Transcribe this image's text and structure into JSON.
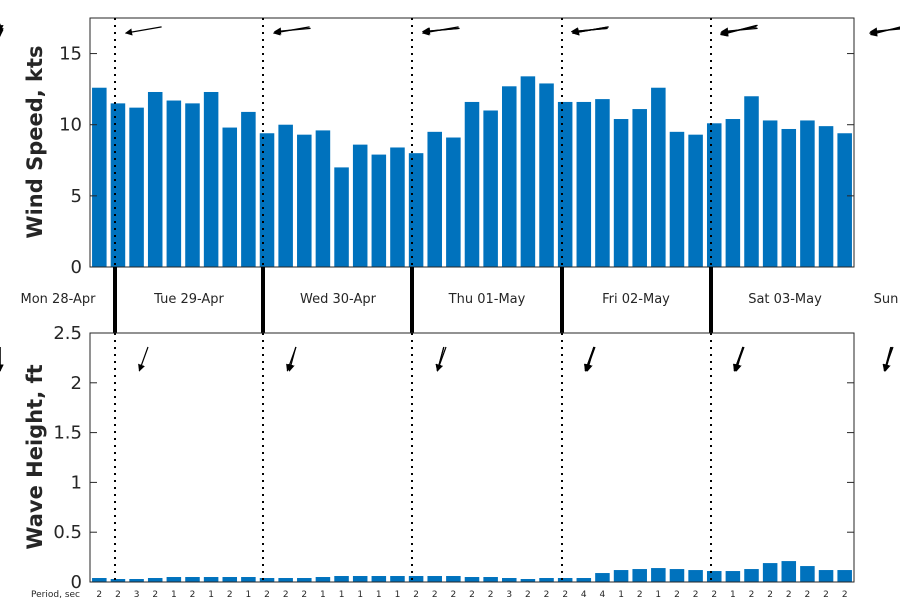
{
  "chart_data": [
    {
      "type": "bar",
      "ylabel": "Wind Speed, kts",
      "ylim": [
        0,
        17.5
      ],
      "yticks": [
        0,
        5,
        10,
        15
      ],
      "values": [
        12.6,
        11.5,
        11.2,
        12.3,
        11.7,
        11.5,
        12.3,
        9.8,
        10.9,
        9.4,
        10.0,
        9.3,
        9.6,
        7.0,
        8.6,
        7.9,
        8.4,
        8.0,
        9.5,
        9.1,
        11.6,
        11.0,
        12.7,
        13.4,
        12.9,
        11.6,
        11.6,
        11.8,
        10.4,
        11.1,
        12.6,
        9.5,
        9.3,
        10.1,
        10.4,
        12.0,
        10.3,
        9.7,
        10.3,
        9.9,
        9.4
      ],
      "direction_arrows_deg": [
        100,
        95,
        95,
        100,
        100,
        95,
        95,
        100,
        100,
        95,
        105,
        100,
        100,
        95,
        95,
        100,
        105,
        105,
        100,
        100,
        95,
        105,
        110,
        105
      ],
      "grid": false
    },
    {
      "type": "bar",
      "ylabel": "Wave Height, ft",
      "ylim": [
        0,
        2.5
      ],
      "yticks": [
        0,
        0.5,
        1,
        1.5,
        2,
        2.5
      ],
      "ytick_labels": [
        "0",
        "0.5",
        "1",
        "1.5",
        "2",
        "2.5"
      ],
      "values": [
        0.04,
        0.03,
        0.03,
        0.04,
        0.05,
        0.05,
        0.05,
        0.05,
        0.05,
        0.04,
        0.04,
        0.04,
        0.05,
        0.06,
        0.06,
        0.06,
        0.06,
        0.06,
        0.06,
        0.06,
        0.05,
        0.05,
        0.04,
        0.03,
        0.04,
        0.04,
        0.04,
        0.09,
        0.12,
        0.13,
        0.14,
        0.13,
        0.12,
        0.11,
        0.11,
        0.13,
        0.19,
        0.21,
        0.16,
        0.12,
        0.12
      ],
      "direction_arrows_deg": [
        20,
        15,
        20,
        15,
        20,
        15,
        20,
        20,
        15,
        20,
        20,
        15,
        20,
        15,
        20,
        20,
        20,
        15,
        15,
        20,
        20,
        15,
        15,
        20
      ],
      "period_label": "Period, sec",
      "periods": [
        "2",
        "2",
        "3",
        "2",
        "1",
        "2",
        "1",
        "2",
        "1",
        "2",
        "2",
        "2",
        "1",
        "1",
        "1",
        "1",
        "1",
        "2",
        "2",
        "2",
        "2",
        "2",
        "3",
        "2",
        "2",
        "2",
        "4",
        "4",
        "1",
        "2",
        "1",
        "2",
        "2",
        "2",
        "1",
        "2",
        "2",
        "2",
        "2",
        "2",
        "2"
      ],
      "grid": false
    }
  ],
  "days": [
    "Mon 28-Apr",
    "Tue 29-Apr",
    "Wed 30-Apr",
    "Thu 01-May",
    "Fri 02-May",
    "Sat 03-May",
    "Sun"
  ],
  "colors": {
    "bar": "#0072bd",
    "axis": "#262626",
    "arrow": "#000000"
  }
}
